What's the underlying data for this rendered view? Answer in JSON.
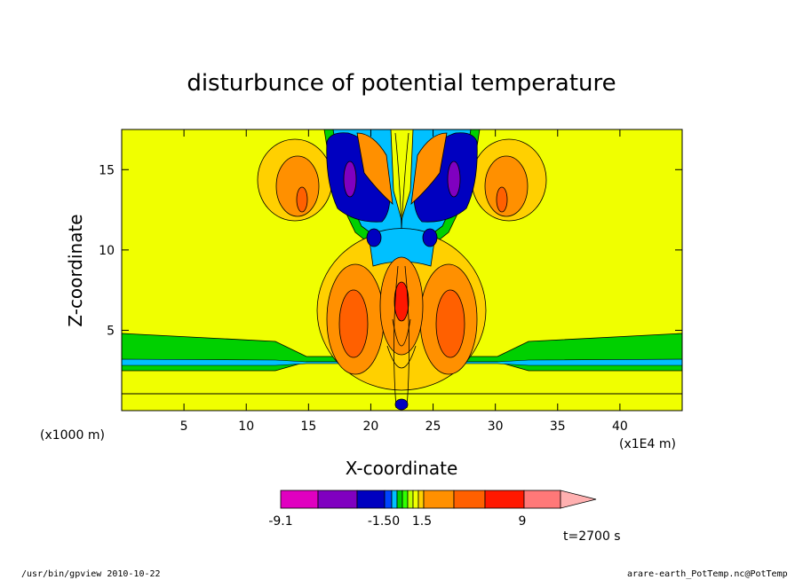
{
  "chart_data": {
    "type": "heatmap",
    "title": "disturbunce of potential temperature",
    "xlabel": "X-coordinate",
    "ylabel": "Z-coordinate",
    "x_units_left": "(x1000 m)",
    "x_units_right": "(x1E4 m)",
    "xlim": [
      0,
      45
    ],
    "ylim": [
      0,
      17.5
    ],
    "x_ticks": [
      5,
      10,
      15,
      20,
      25,
      30,
      35,
      40
    ],
    "y_ticks": [
      5,
      10,
      15
    ],
    "background_color": "#f0ff00",
    "time_label": "t=2700 s",
    "colorbar": {
      "labels": [
        "-9.1",
        "-1.50",
        "1.5",
        "9"
      ],
      "colors": [
        "#e000c0",
        "#8000c0",
        "#0000c0",
        "#0044ff",
        "#00c0ff",
        "#00d000",
        "#30ff00",
        "#c0ff00",
        "#f0ff00",
        "#ffd000",
        "#ff9000",
        "#ff6000",
        "#ff1800",
        "#ff7878",
        "#ffb0b0"
      ]
    }
  },
  "footer": {
    "left": "/usr/bin/gpview  2010-10-22",
    "right": "arare-earth_PotTemp.nc@PotTemp"
  }
}
